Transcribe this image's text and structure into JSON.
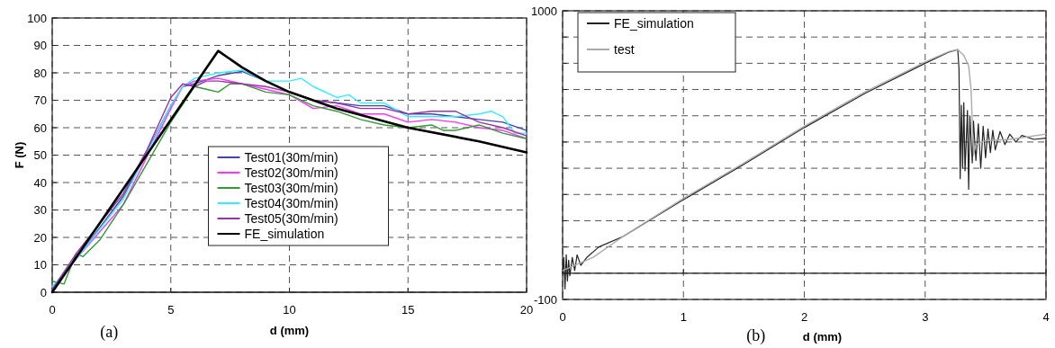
{
  "chart_data": [
    {
      "type": "line",
      "xlabel": "d (mm)",
      "ylabel": "F (N)",
      "annotations": [
        "(a)"
      ],
      "xlim": [
        0,
        20
      ],
      "xticks": [
        0,
        5,
        10,
        15,
        20
      ],
      "ylim": [
        0,
        100
      ],
      "yticks": [
        0,
        10,
        20,
        30,
        40,
        50,
        60,
        70,
        80,
        90,
        100
      ],
      "grid": true,
      "legend": "bottom",
      "line_style": "solid",
      "series": [
        {
          "name": "Test01(30m/min)",
          "color": "#4444aa",
          "x": [
            0,
            1,
            3,
            5,
            5.5,
            6,
            7,
            8,
            9,
            10,
            11,
            12,
            13,
            14,
            15,
            16,
            17,
            18,
            19,
            20
          ],
          "values": [
            1,
            12,
            35,
            68,
            75,
            76,
            79,
            80.5,
            77,
            73,
            70,
            69,
            68,
            68,
            65,
            65,
            64,
            63,
            62,
            59
          ]
        },
        {
          "name": "Test02(30m/min)",
          "color": "#ff33ff",
          "x": [
            0,
            1,
            3,
            5,
            5.5,
            6,
            7,
            8,
            9,
            10,
            11,
            12,
            13,
            14,
            15,
            16,
            17,
            18,
            19,
            20
          ],
          "values": [
            1,
            12,
            32,
            67,
            75,
            77,
            78,
            76,
            74,
            72,
            67,
            68,
            65,
            65,
            62,
            63,
            62,
            60,
            59,
            56
          ]
        },
        {
          "name": "Test03(30m/min)",
          "color": "#339933",
          "x": [
            0,
            0.5,
            1,
            1.3,
            2,
            3,
            4,
            5,
            6,
            6.5,
            7,
            7.5,
            8,
            9,
            10,
            11,
            12,
            13,
            14,
            15,
            16,
            16.5,
            17,
            18,
            19,
            20
          ],
          "values": [
            4,
            3,
            14,
            13,
            19,
            32,
            47,
            62,
            75,
            74,
            73,
            76,
            76,
            73,
            72,
            68,
            66,
            63,
            61,
            60,
            61,
            59,
            59,
            61,
            58,
            56
          ]
        },
        {
          "name": "Test04(30m/min)",
          "color": "#33eeff",
          "x": [
            0,
            1,
            3,
            5,
            5.5,
            6,
            7,
            8,
            9,
            10,
            10.5,
            11,
            12,
            12.5,
            13,
            14,
            15,
            16,
            17,
            18,
            18.5,
            19,
            19.5,
            20
          ],
          "values": [
            2,
            12,
            34,
            68,
            75,
            78,
            80,
            81,
            77,
            77,
            78,
            75,
            71,
            72,
            69,
            69,
            64,
            64,
            64,
            65,
            66,
            64,
            58,
            58
          ]
        },
        {
          "name": "Test05(30m/min)",
          "color": "#9933aa",
          "x": [
            0,
            1,
            3,
            4,
            5,
            5.5,
            6,
            6.5,
            7,
            8,
            9,
            10,
            11,
            12,
            13,
            14,
            15,
            16,
            17,
            18,
            19,
            20
          ],
          "values": [
            1,
            14,
            36,
            52,
            71,
            76,
            75,
            77,
            77,
            76,
            75,
            73,
            70,
            69,
            67,
            67,
            65,
            66,
            66,
            62,
            60,
            57
          ]
        },
        {
          "name": "FE_simulation",
          "color": "#000000",
          "x": [
            0,
            7,
            8,
            9,
            10,
            12,
            15,
            18,
            20
          ],
          "values": [
            0,
            88,
            82,
            77,
            73,
            67,
            60,
            55,
            51
          ]
        }
      ]
    },
    {
      "type": "line",
      "xlabel": "d (mm)",
      "annotations": [
        "(b)"
      ],
      "xlim": [
        0,
        4
      ],
      "xticks": [
        0,
        1,
        2,
        3,
        4
      ],
      "ylim": [
        -100,
        1000
      ],
      "yticks": [
        {
          "value": -100,
          "label": "-100"
        },
        {
          "value": 0,
          "label": null
        },
        {
          "value": 100,
          "label": null
        },
        {
          "value": 200,
          "label": null
        },
        {
          "value": 300,
          "label": null
        },
        {
          "value": 400,
          "label": null
        },
        {
          "value": 500,
          "label": null
        },
        {
          "value": 600,
          "label": null
        },
        {
          "value": 700,
          "label": null
        },
        {
          "value": 800,
          "label": null
        },
        {
          "value": 900,
          "label": null
        },
        {
          "value": 1000,
          "label": "1000"
        }
      ],
      "grid": true,
      "legend": "top left",
      "line_style": "solid",
      "series": [
        {
          "name": "FE_simulation",
          "color": "#222222",
          "x": [
            0,
            0.01,
            0.02,
            0.03,
            0.04,
            0.05,
            0.06,
            0.08,
            0.1,
            0.12,
            0.15,
            0.2,
            0.3,
            0.5,
            1,
            1.5,
            2,
            2.5,
            3,
            3.2,
            3.27,
            3.28,
            3.29,
            3.3,
            3.31,
            3.32,
            3.33,
            3.35,
            3.36,
            3.37,
            3.39,
            3.4,
            3.42,
            3.44,
            3.46,
            3.48,
            3.5,
            3.52,
            3.54,
            3.56,
            3.58,
            3.62,
            3.66,
            3.7,
            3.75,
            3.8,
            3.9,
            4
          ],
          "values": [
            0,
            60,
            -60,
            70,
            -30,
            50,
            -10,
            60,
            10,
            70,
            30,
            60,
            100,
            140,
            280,
            415,
            555,
            685,
            800,
            843,
            852,
            780,
            360,
            640,
            400,
            650,
            390,
            620,
            320,
            600,
            420,
            580,
            430,
            570,
            400,
            560,
            440,
            550,
            460,
            545,
            470,
            540,
            490,
            530,
            500,
            525,
            510,
            515
          ]
        },
        {
          "name": "test",
          "color": "#aaaaaa",
          "x": [
            0,
            0.25,
            0.5,
            1,
            1.5,
            2,
            2.5,
            3,
            3.2,
            3.27,
            3.32,
            3.36,
            3.38,
            3.4,
            3.42,
            3.5,
            3.7,
            4
          ],
          "values": [
            10,
            60,
            140,
            285,
            420,
            560,
            690,
            805,
            845,
            852,
            830,
            790,
            700,
            450,
            490,
            505,
            510,
            530
          ]
        }
      ]
    }
  ]
}
